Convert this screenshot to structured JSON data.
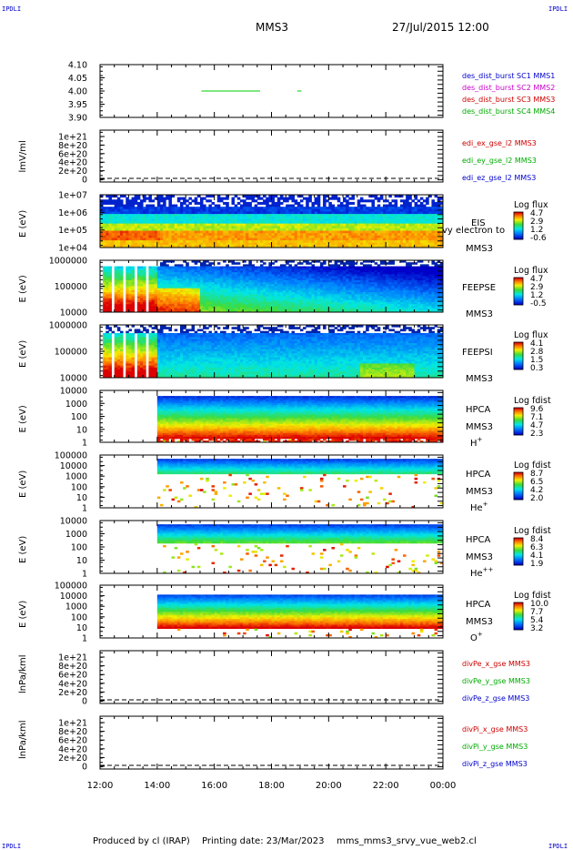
{
  "header": {
    "corner_tl": "IPDLI",
    "corner_tr": "IPDLI",
    "corner_bl": "IPDLI",
    "corner_br": "IPDLI",
    "spacecraft": "MMS3",
    "date": "27/Jul/2015 12:00"
  },
  "footer": {
    "produced": "Produced by cl (IRAP)",
    "printing": "Printing date: 23/Mar/2023",
    "file": "mms_mms3_srvy_vue_web2.cl"
  },
  "time_axis": {
    "ticks": [
      "12:00",
      "14:00",
      "16:00",
      "18:00",
      "20:00",
      "22:00",
      "00:00"
    ]
  },
  "panels": [
    {
      "id": "burst",
      "type": "line",
      "ylabel": "",
      "yticks": [
        "4.10",
        "4.05",
        "4.00",
        "3.95",
        "3.90"
      ],
      "ylim": [
        3.9,
        4.1
      ],
      "legend": [
        {
          "text": "des_dist_burst SC1 MMS1",
          "color": "#0000cc"
        },
        {
          "text": "des_dist_burst SC2 MMS2",
          "color": "#cc00cc"
        },
        {
          "text": "des_dist_burst SC3 MMS3",
          "color": "#cc0000"
        },
        {
          "text": "des_dist_burst SC4 MMS4",
          "color": "#00aa00"
        }
      ],
      "segments": [
        {
          "x0": 15.55,
          "x1": 17.6,
          "y": 4.0,
          "color": "#00cc00"
        },
        {
          "x0": 18.9,
          "x1": 19.05,
          "y": 4.0,
          "color": "#00cc00"
        }
      ]
    },
    {
      "id": "edi",
      "type": "line",
      "ylabel": "lmV/ml",
      "yticks": [
        "1e+21",
        "8e+20",
        "6e+20",
        "4e+20",
        "2e+20",
        "0"
      ],
      "legend": [
        {
          "text": "edi_ex_gse_l2 MMS3",
          "color": "#cc0000"
        },
        {
          "text": "edi_ey_gse_l2 MMS3",
          "color": "#00aa00"
        },
        {
          "text": "edi_ez_gse_l2 MMS3",
          "color": "#0000cc"
        }
      ]
    },
    {
      "id": "eis",
      "type": "spectrogram",
      "ylabel": "E (eV)",
      "yticks": [
        "1e+07",
        "1e+06",
        "1e+05",
        "1e+04"
      ],
      "right_labels": [
        "EIS",
        "MMS3"
      ],
      "overlap_text": "vy electron to",
      "cbar_title": "Log flux",
      "cbar_ticks": [
        "4.7",
        "2.9",
        "1.2",
        "-0.6"
      ]
    },
    {
      "id": "feepse",
      "type": "spectrogram",
      "ylabel": "E (eV)",
      "yticks": [
        "1000000",
        "100000",
        "10000"
      ],
      "right_labels": [
        "FEEPSE",
        "MMS3"
      ],
      "cbar_title": "Log flux",
      "cbar_ticks": [
        "4.7",
        "2.9",
        "1.2",
        "-0.5"
      ]
    },
    {
      "id": "feepsi",
      "type": "spectrogram",
      "ylabel": "E (eV)",
      "yticks": [
        "1000000",
        "100000",
        "10000"
      ],
      "right_labels": [
        "FEEPSI",
        "MMS3"
      ],
      "cbar_title": "Log flux",
      "cbar_ticks": [
        "4.1",
        "2.8",
        "1.5",
        "0.3"
      ]
    },
    {
      "id": "hpca_h",
      "type": "spectrogram",
      "ylabel": "E (eV)",
      "yticks": [
        "10000",
        "1000",
        "100",
        "10",
        "1"
      ],
      "right_labels": [
        "HPCA",
        "MMS3"
      ],
      "species": "H",
      "species_sup": "+",
      "cbar_title": "Log fdist",
      "cbar_ticks": [
        "9.6",
        "7.1",
        "4.7",
        "2.3"
      ]
    },
    {
      "id": "hpca_he",
      "type": "spectrogram",
      "ylabel": "E (eV)",
      "yticks": [
        "100000",
        "10000",
        "1000",
        "100",
        "10",
        "1"
      ],
      "right_labels": [
        "HPCA",
        "MMS3"
      ],
      "species": "He",
      "species_sup": "+",
      "cbar_title": "Log fdist",
      "cbar_ticks": [
        "8.7",
        "6.5",
        "4.2",
        "2.0"
      ]
    },
    {
      "id": "hpca_he2",
      "type": "spectrogram",
      "ylabel": "E (eV)",
      "yticks": [
        "10000",
        "1000",
        "100",
        "10",
        "1"
      ],
      "right_labels": [
        "HPCA",
        "MMS3"
      ],
      "species": "He",
      "species_sup": "++",
      "cbar_title": "Log fdist",
      "cbar_ticks": [
        "8.4",
        "6.3",
        "4.1",
        "1.9"
      ]
    },
    {
      "id": "hpca_o",
      "type": "spectrogram",
      "ylabel": "E (eV)",
      "yticks": [
        "100000",
        "10000",
        "1000",
        "100",
        "10",
        "1"
      ],
      "right_labels": [
        "HPCA",
        "MMS3"
      ],
      "species": "O",
      "species_sup": "+",
      "cbar_title": "Log fdist",
      "cbar_ticks": [
        "10.0",
        "7.7",
        "5.4",
        "3.2"
      ]
    },
    {
      "id": "divpe",
      "type": "line",
      "ylabel": "lnPa/kml",
      "yticks": [
        "1e+21",
        "8e+20",
        "6e+20",
        "4e+20",
        "2e+20",
        "0"
      ],
      "legend": [
        {
          "text": "divPe_x_gse MMS3",
          "color": "#cc0000"
        },
        {
          "text": "divPe_y_gse MMS3",
          "color": "#00aa00"
        },
        {
          "text": "divPe_z_gse MMS3",
          "color": "#0000cc"
        }
      ]
    },
    {
      "id": "divpi",
      "type": "line",
      "ylabel": "lnPa/kml",
      "yticks": [
        "1e+21",
        "8e+20",
        "6e+20",
        "4e+20",
        "2e+20",
        "0"
      ],
      "legend": [
        {
          "text": "divPi_x_gse MMS3",
          "color": "#cc0000"
        },
        {
          "text": "divPi_y_gse MMS3",
          "color": "#00aa00"
        },
        {
          "text": "divPi_z_gse MMS3",
          "color": "#0000cc"
        }
      ]
    }
  ],
  "chart_data": {
    "type": "heatmap",
    "title": "MMS3",
    "xlabel": "",
    "x_range_hours": [
      12,
      24
    ],
    "data_start_hour": 14.0,
    "colormap": "rainbow"
  }
}
